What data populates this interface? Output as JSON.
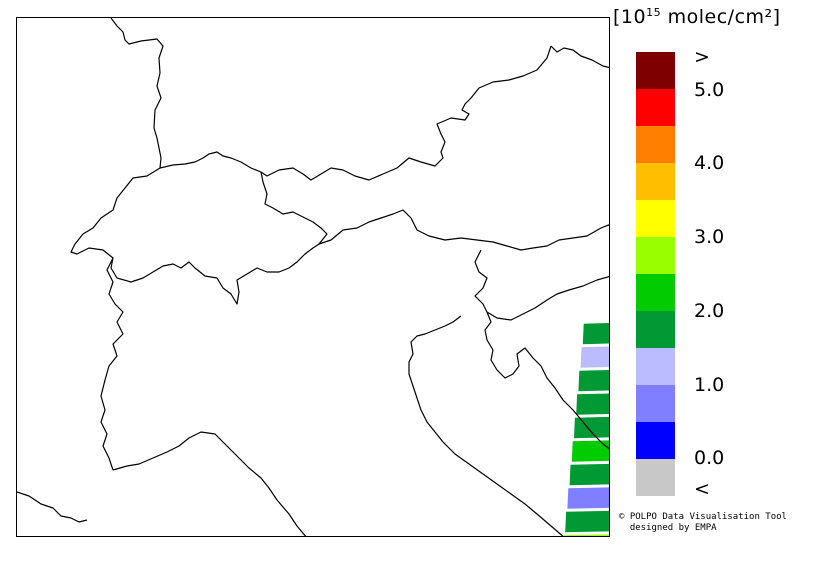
{
  "units": {
    "open": "[10",
    "exp": "15",
    "rest": " molec/cm²]"
  },
  "legend": {
    "colors": [
      "#7f0000",
      "#ff0000",
      "#ff7f00",
      "#ffbf00",
      "#ffff00",
      "#99ff00",
      "#00cc00",
      "#009933",
      "#bbbbff",
      "#7f7fff",
      "#0000ff",
      "#c8c8c8"
    ],
    "labels": [
      ">",
      "5.0",
      "4.0",
      "3.0",
      "2.0",
      "1.0",
      "0.0",
      "<"
    ]
  },
  "credits": {
    "line1": "© POLPO Data Visualisation Tool",
    "line2": "  designed by EMPA"
  },
  "swath_colors": [
    "#009933",
    "#bbbbff",
    "#009933",
    "#009933",
    "#009933",
    "#00cc00",
    "#009933",
    "#7f7fff",
    "#009933",
    "#99ff00",
    "#bbbbff"
  ]
}
